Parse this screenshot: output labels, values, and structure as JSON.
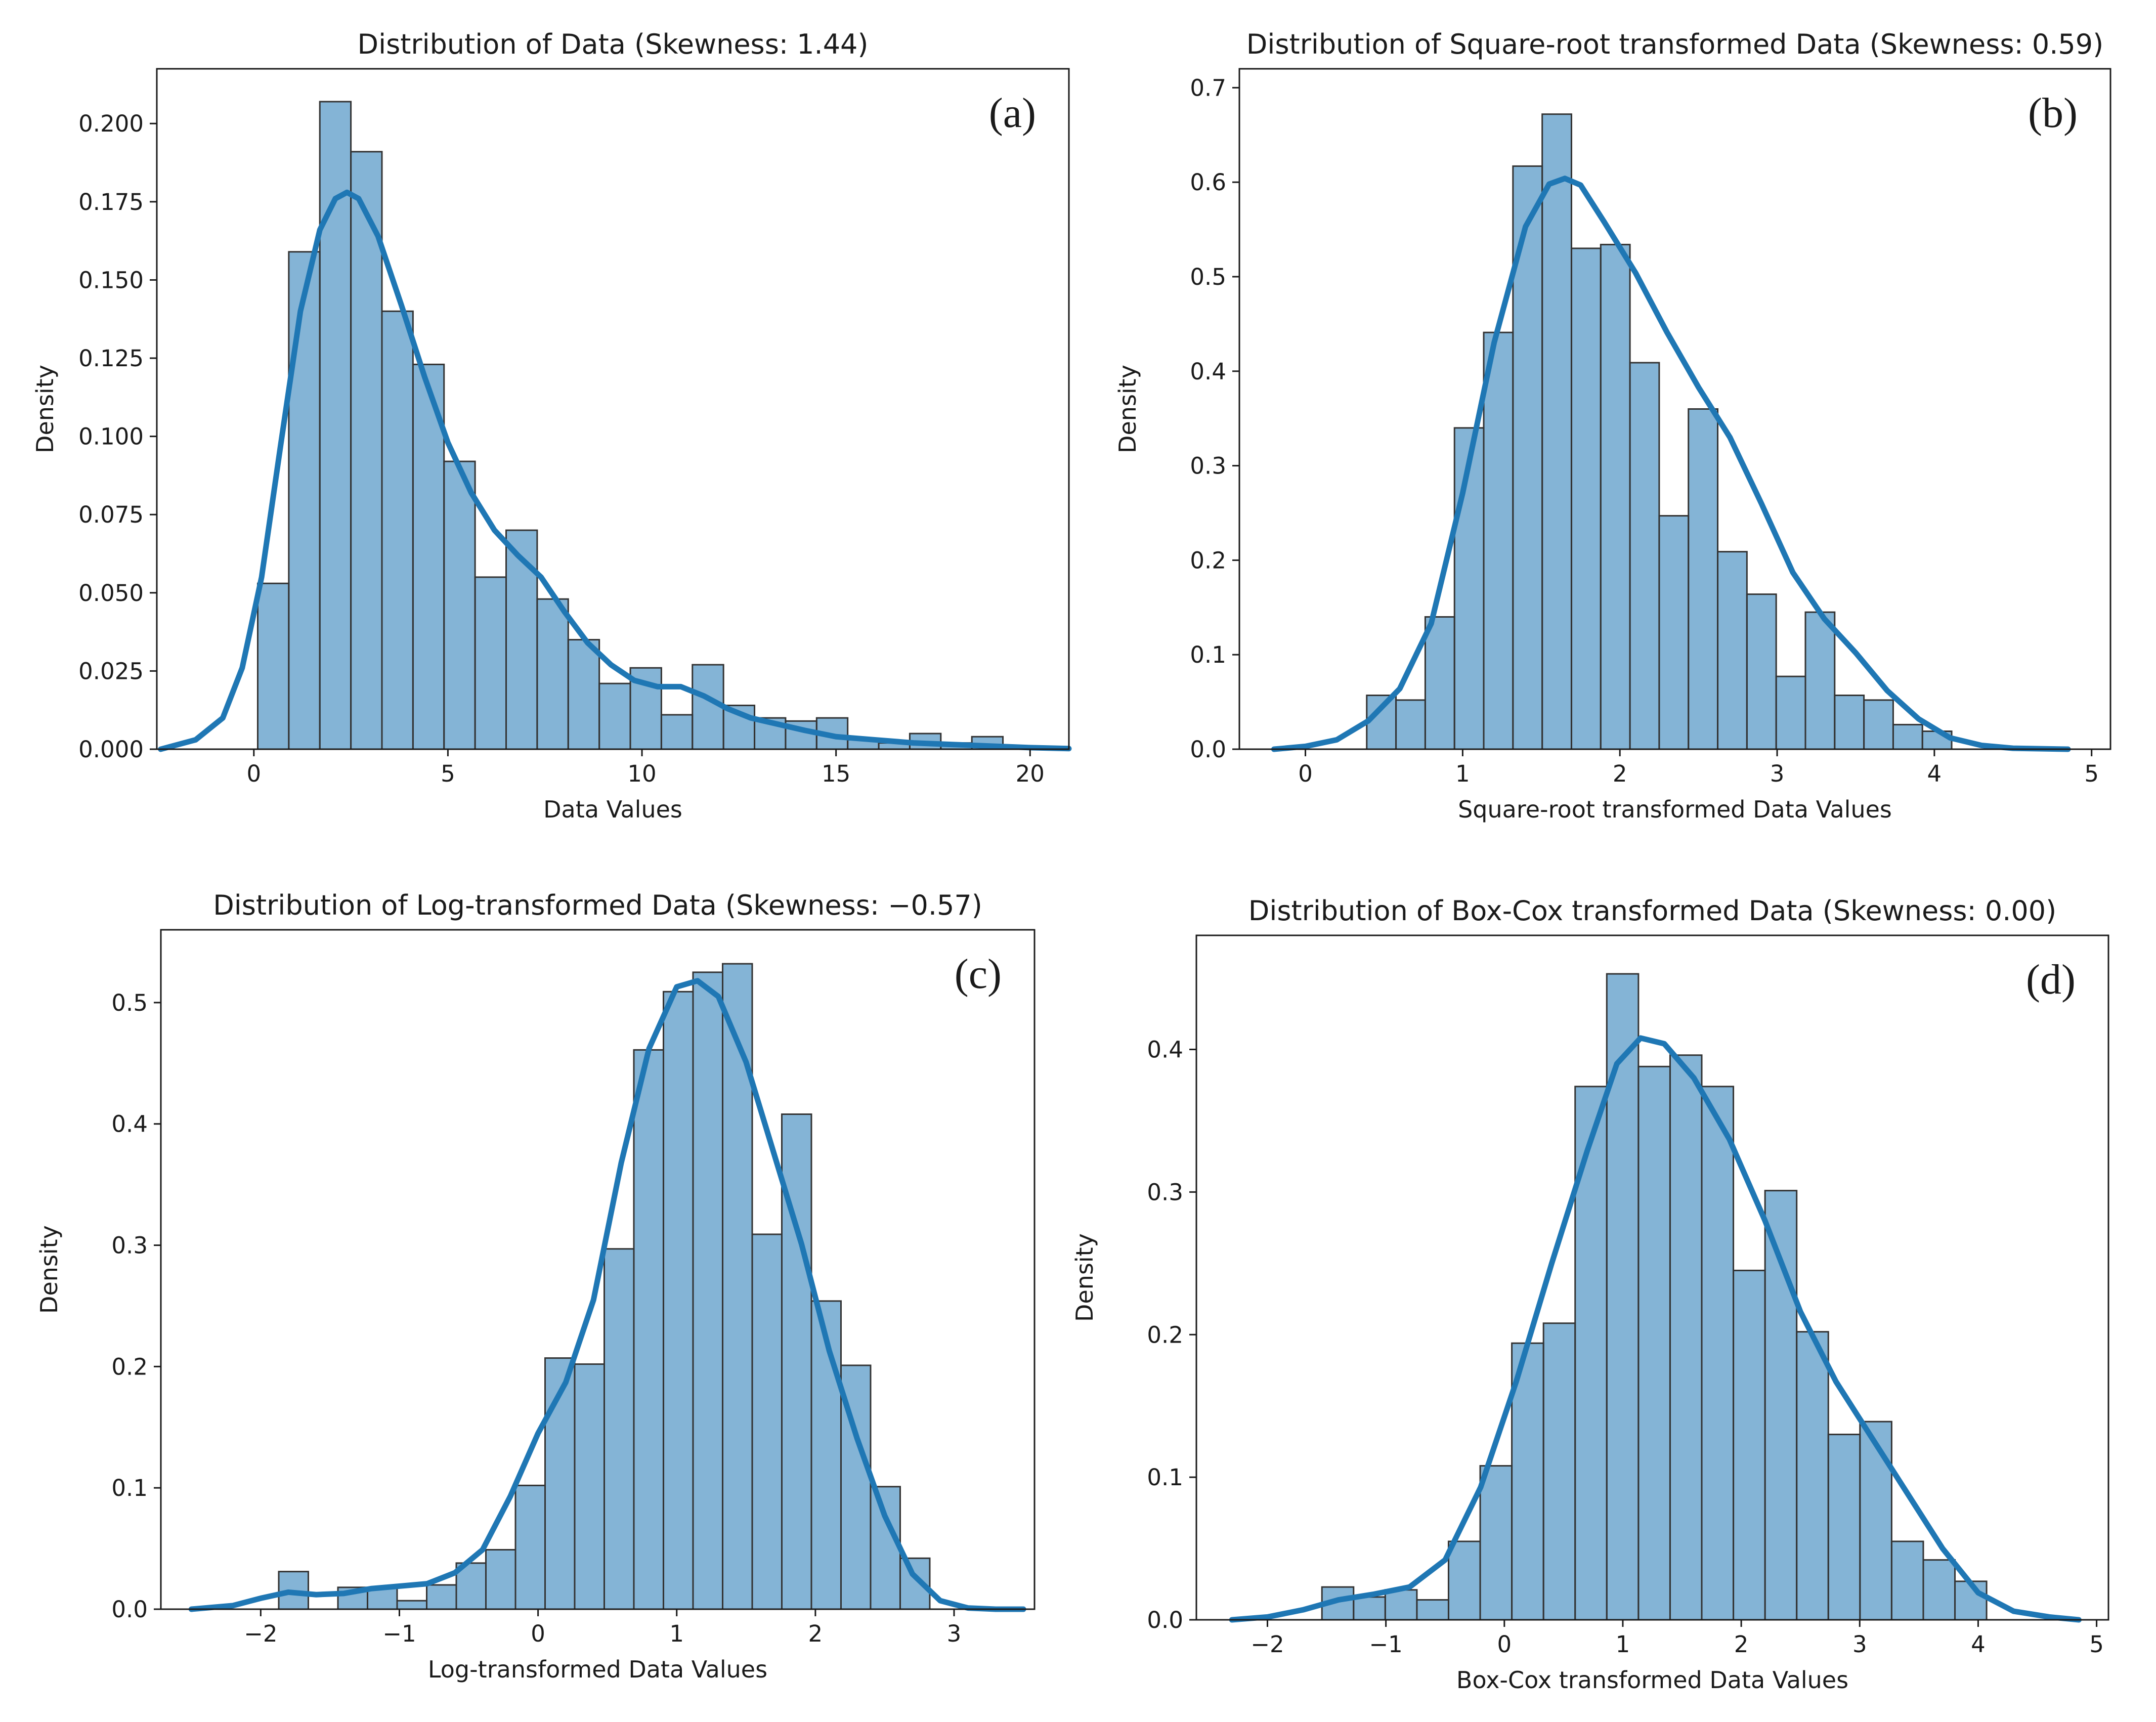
{
  "figure": {
    "colors": {
      "bar": "#1f77b4",
      "kde": "#1f77b4"
    }
  },
  "chart_data": [
    {
      "id": "a",
      "type": "bar",
      "subtype": "histogram-with-kde",
      "panel_letter": "(a)",
      "title": "Distribution of Data (Skewness: 1.44)",
      "xlabel": "Data Values",
      "ylabel": "Density",
      "xlim": [
        -2.5,
        21.0
      ],
      "ylim": [
        0,
        0.2175
      ],
      "xticks": [
        0,
        5,
        10,
        15,
        20
      ],
      "xtick_labels": [
        "0",
        "5",
        "10",
        "15",
        "20"
      ],
      "yticks": [
        0.0,
        0.025,
        0.05,
        0.075,
        0.1,
        0.125,
        0.15,
        0.175,
        0.2
      ],
      "ytick_labels": [
        "0.000",
        "0.025",
        "0.050",
        "0.075",
        "0.100",
        "0.125",
        "0.150",
        "0.175",
        "0.200"
      ],
      "bins": {
        "start": 0.1,
        "width": 0.8
      },
      "values": [
        0.053,
        0.159,
        0.207,
        0.191,
        0.14,
        0.123,
        0.092,
        0.055,
        0.07,
        0.048,
        0.035,
        0.021,
        0.026,
        0.011,
        0.027,
        0.014,
        0.01,
        0.009,
        0.01,
        0.003,
        0.002,
        0.005,
        0.002,
        0.004
      ],
      "kde": {
        "x": [
          -2.4,
          -1.5,
          -0.8,
          -0.3,
          0.2,
          0.7,
          1.2,
          1.7,
          2.1,
          2.4,
          2.7,
          3.2,
          3.8,
          4.4,
          5.0,
          5.6,
          6.2,
          6.8,
          7.4,
          8.0,
          8.6,
          9.2,
          9.8,
          10.4,
          11.0,
          11.6,
          12.2,
          12.8,
          13.5,
          14.2,
          15.0,
          16.0,
          17.0,
          18.0,
          19.0,
          20.0,
          21.0
        ],
        "y": [
          0.0,
          0.003,
          0.01,
          0.026,
          0.055,
          0.098,
          0.14,
          0.166,
          0.176,
          0.178,
          0.176,
          0.164,
          0.142,
          0.119,
          0.098,
          0.082,
          0.07,
          0.062,
          0.055,
          0.044,
          0.034,
          0.027,
          0.022,
          0.02,
          0.02,
          0.017,
          0.013,
          0.01,
          0.008,
          0.006,
          0.004,
          0.003,
          0.002,
          0.0015,
          0.001,
          0.0005,
          0.0002
        ]
      }
    },
    {
      "id": "b",
      "type": "bar",
      "subtype": "histogram-with-kde",
      "panel_letter": "(b)",
      "title": "Distribution of Square-root transformed Data (Skewness: 0.59)",
      "xlabel": "Square-root transformed Data Values",
      "ylabel": "Density",
      "xlim": [
        -0.42,
        5.12
      ],
      "ylim": [
        0,
        0.72
      ],
      "xticks": [
        0,
        1,
        2,
        3,
        4,
        5
      ],
      "xtick_labels": [
        "0",
        "1",
        "2",
        "3",
        "4",
        "5"
      ],
      "yticks": [
        0.0,
        0.1,
        0.2,
        0.3,
        0.4,
        0.5,
        0.6,
        0.7
      ],
      "ytick_labels": [
        "0.0",
        "0.1",
        "0.2",
        "0.3",
        "0.4",
        "0.5",
        "0.6",
        "0.7"
      ],
      "bins": {
        "start": 0.39,
        "width": 0.186
      },
      "values": [
        0.057,
        0.052,
        0.14,
        0.34,
        0.441,
        0.617,
        0.672,
        0.53,
        0.534,
        0.409,
        0.247,
        0.36,
        0.209,
        0.164,
        0.077,
        0.145,
        0.057,
        0.052,
        0.026,
        0.019
      ],
      "kde": {
        "x": [
          -0.2,
          0.0,
          0.2,
          0.4,
          0.6,
          0.8,
          1.0,
          1.2,
          1.4,
          1.55,
          1.65,
          1.75,
          1.9,
          2.1,
          2.3,
          2.5,
          2.7,
          2.9,
          3.1,
          3.3,
          3.5,
          3.7,
          3.9,
          4.1,
          4.3,
          4.5,
          4.85
        ],
        "y": [
          0.0,
          0.003,
          0.01,
          0.03,
          0.064,
          0.133,
          0.271,
          0.43,
          0.553,
          0.598,
          0.604,
          0.597,
          0.558,
          0.504,
          0.441,
          0.383,
          0.33,
          0.26,
          0.187,
          0.138,
          0.102,
          0.062,
          0.032,
          0.012,
          0.004,
          0.001,
          0.0
        ]
      }
    },
    {
      "id": "c",
      "type": "bar",
      "subtype": "histogram-with-kde",
      "panel_letter": "(c)",
      "title": "Distribution of Log-transformed Data (Skewness: −0.57)",
      "xlabel": "Log-transformed Data Values",
      "ylabel": "Density",
      "xlim": [
        -2.72,
        3.58
      ],
      "ylim": [
        0,
        0.56
      ],
      "xticks": [
        -2,
        -1,
        0,
        1,
        2,
        3
      ],
      "xtick_labels": [
        "−2",
        "−1",
        "0",
        "1",
        "2",
        "3"
      ],
      "yticks": [
        0.0,
        0.1,
        0.2,
        0.3,
        0.4,
        0.5
      ],
      "ytick_labels": [
        "0.0",
        "0.1",
        "0.2",
        "0.3",
        "0.4",
        "0.5"
      ],
      "bins": {
        "start": -1.87,
        "width": 0.2134
      },
      "values": [
        0.031,
        0.0,
        0.018,
        0.018,
        0.007,
        0.02,
        0.038,
        0.049,
        0.102,
        0.207,
        0.202,
        0.297,
        0.461,
        0.509,
        0.525,
        0.532,
        0.309,
        0.408,
        0.254,
        0.201,
        0.101,
        0.042
      ],
      "kde": {
        "x": [
          -2.5,
          -2.2,
          -2.0,
          -1.8,
          -1.6,
          -1.4,
          -1.2,
          -1.0,
          -0.8,
          -0.6,
          -0.4,
          -0.2,
          0.0,
          0.2,
          0.4,
          0.6,
          0.8,
          1.0,
          1.15,
          1.3,
          1.5,
          1.7,
          1.9,
          2.1,
          2.3,
          2.5,
          2.7,
          2.9,
          3.1,
          3.3,
          3.5
        ],
        "y": [
          0.0,
          0.003,
          0.009,
          0.014,
          0.012,
          0.013,
          0.017,
          0.019,
          0.021,
          0.03,
          0.049,
          0.093,
          0.145,
          0.187,
          0.255,
          0.368,
          0.462,
          0.513,
          0.518,
          0.505,
          0.451,
          0.376,
          0.301,
          0.213,
          0.141,
          0.077,
          0.029,
          0.007,
          0.001,
          0.0,
          0.0
        ]
      }
    },
    {
      "id": "d",
      "type": "bar",
      "subtype": "histogram-with-kde",
      "panel_letter": "(d)",
      "title": "Distribution of Box-Cox transformed Data (Skewness: 0.00)",
      "xlabel": "Box-Cox transformed Data Values",
      "ylabel": "Density",
      "xlim": [
        -2.6,
        5.1
      ],
      "ylim": [
        0,
        0.48
      ],
      "xticks": [
        -2,
        -1,
        0,
        1,
        2,
        3,
        4,
        5
      ],
      "xtick_labels": [
        "−2",
        "−1",
        "0",
        "1",
        "2",
        "3",
        "4",
        "5"
      ],
      "yticks": [
        0.0,
        0.1,
        0.2,
        0.3,
        0.4
      ],
      "ytick_labels": [
        "0.0",
        "0.1",
        "0.2",
        "0.3",
        "0.4"
      ],
      "bins": {
        "start": -1.54,
        "width": 0.2672
      },
      "values": [
        0.023,
        0.016,
        0.021,
        0.014,
        0.055,
        0.108,
        0.194,
        0.208,
        0.374,
        0.453,
        0.388,
        0.396,
        0.374,
        0.245,
        0.301,
        0.202,
        0.13,
        0.139,
        0.055,
        0.042,
        0.027
      ],
      "kde": {
        "x": [
          -2.3,
          -2.0,
          -1.7,
          -1.4,
          -1.1,
          -0.8,
          -0.5,
          -0.2,
          0.1,
          0.4,
          0.7,
          0.95,
          1.15,
          1.35,
          1.6,
          1.9,
          2.2,
          2.5,
          2.8,
          3.1,
          3.4,
          3.7,
          4.0,
          4.3,
          4.6,
          4.85
        ],
        "y": [
          0.0,
          0.002,
          0.007,
          0.014,
          0.018,
          0.023,
          0.042,
          0.093,
          0.167,
          0.25,
          0.329,
          0.39,
          0.408,
          0.404,
          0.38,
          0.337,
          0.28,
          0.216,
          0.167,
          0.128,
          0.089,
          0.05,
          0.019,
          0.006,
          0.002,
          0.0
        ]
      }
    }
  ]
}
